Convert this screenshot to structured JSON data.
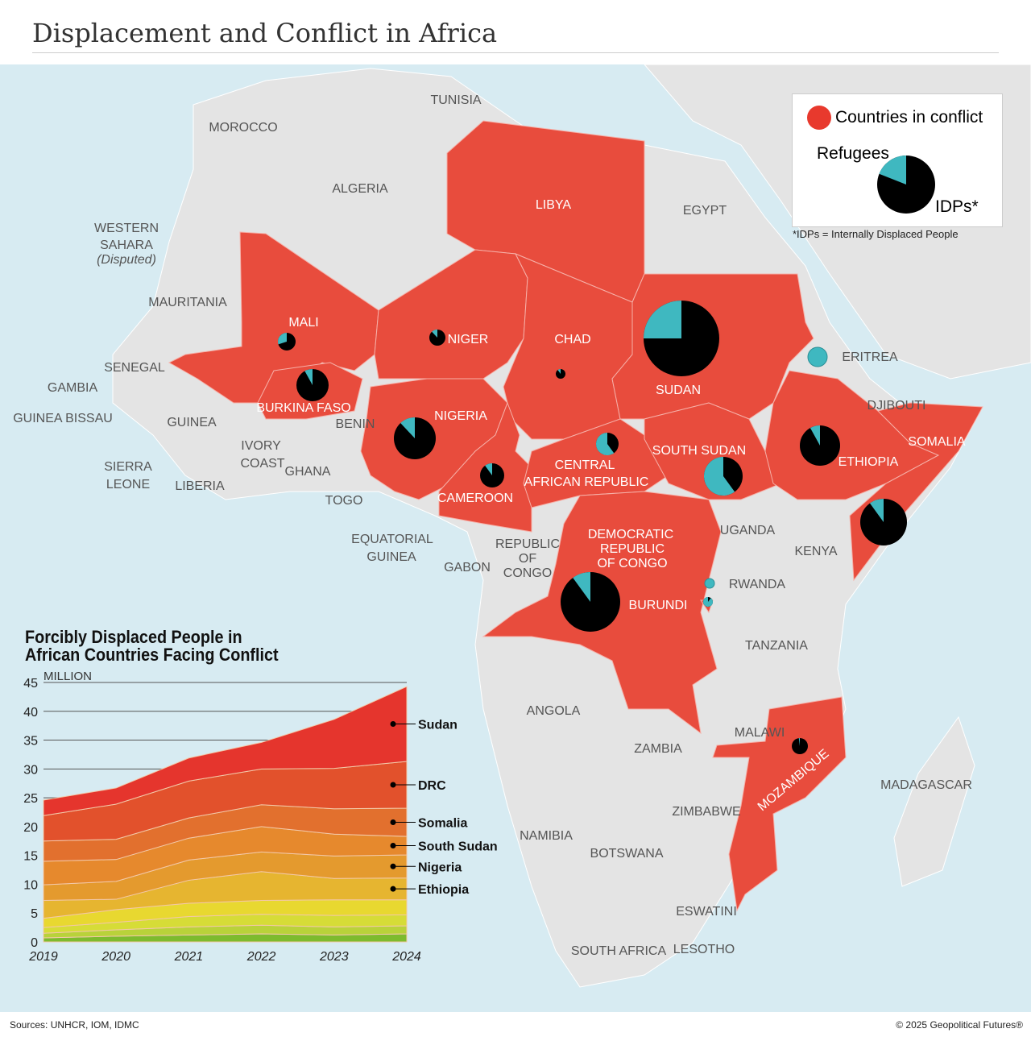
{
  "title": "Displacement and Conflict in Africa",
  "legend": {
    "conflict": "Countries in conflict",
    "refugees": "Refugees",
    "idps": "IDPs*",
    "note": "*IDPs = Internally Displaced People",
    "conflict_color": "#e8392d",
    "refugee_color": "#3fb8c0",
    "idp_color": "#000000"
  },
  "labels": [
    {
      "t": "TUNISIA",
      "c": 0
    },
    {
      "t": "MOROCCO",
      "c": 0
    },
    {
      "t": "ALGERIA",
      "c": 0
    },
    {
      "t": "WESTERN",
      "c": 0
    },
    {
      "t": "SAHARA",
      "c": 0
    },
    {
      "t": "(Disputed)",
      "c": 0
    },
    {
      "t": "LIBYA",
      "c": 1
    },
    {
      "t": "EGYPT",
      "c": 0
    },
    {
      "t": "MAURITANIA",
      "c": 0
    },
    {
      "t": "MALI",
      "c": 1
    },
    {
      "t": "NIGER",
      "c": 1
    },
    {
      "t": "CHAD",
      "c": 1
    },
    {
      "t": "SUDAN",
      "c": 1
    },
    {
      "t": "ERITREA",
      "c": 0
    },
    {
      "t": "SENEGAL",
      "c": 0
    },
    {
      "t": "GAMBIA",
      "c": 0
    },
    {
      "t": "GUINEA BISSAU",
      "c": 0
    },
    {
      "t": "GUINEA",
      "c": 0
    },
    {
      "t": "BURKINA FASO",
      "c": 1
    },
    {
      "t": "BENIN",
      "c": 0
    },
    {
      "t": "NIGERIA",
      "c": 1
    },
    {
      "t": "DJIBOUTI",
      "c": 0
    },
    {
      "t": "SOMALIA",
      "c": 1
    },
    {
      "t": "ETHIOPIA",
      "c": 1
    },
    {
      "t": "SOUTH SUDAN",
      "c": 1
    },
    {
      "t": "CENTRAL",
      "c": 1
    },
    {
      "t": "AFRICAN REPUBLIC",
      "c": 1
    },
    {
      "t": "IVORY",
      "c": 0
    },
    {
      "t": "COAST",
      "c": 0
    },
    {
      "t": "GHANA",
      "c": 0
    },
    {
      "t": "SIERRA",
      "c": 0
    },
    {
      "t": "LEONE",
      "c": 0
    },
    {
      "t": "LIBERIA",
      "c": 0
    },
    {
      "t": "TOGO",
      "c": 0
    },
    {
      "t": "CAMEROON",
      "c": 1
    },
    {
      "t": "EQUATORIAL",
      "c": 0
    },
    {
      "t": "GUINEA",
      "c": 0
    },
    {
      "t": "GABON",
      "c": 0
    },
    {
      "t": "REPUBLIC",
      "c": 0
    },
    {
      "t": "OF",
      "c": 0
    },
    {
      "t": "CONGO",
      "c": 0
    },
    {
      "t": "DEMOCRATIC",
      "c": 1
    },
    {
      "t": "REPUBLIC",
      "c": 1
    },
    {
      "t": "OF CONGO",
      "c": 1
    },
    {
      "t": "UGANDA",
      "c": 0
    },
    {
      "t": "KENYA",
      "c": 0
    },
    {
      "t": "RWANDA",
      "c": 0
    },
    {
      "t": "BURUNDI",
      "c": 1
    },
    {
      "t": "TANZANIA",
      "c": 0
    },
    {
      "t": "ANGOLA",
      "c": 0
    },
    {
      "t": "ZAMBIA",
      "c": 0
    },
    {
      "t": "MALAWI",
      "c": 0
    },
    {
      "t": "MOZAMBIQUE",
      "c": 1
    },
    {
      "t": "MADAGASCAR",
      "c": 0
    },
    {
      "t": "ZIMBABWE",
      "c": 0
    },
    {
      "t": "NAMIBIA",
      "c": 0
    },
    {
      "t": "BOTSWANA",
      "c": 0
    },
    {
      "t": "ESWATINI",
      "c": 0
    },
    {
      "t": "SOUTH AFRICA",
      "c": 0
    },
    {
      "t": "LESOTHO",
      "c": 0
    }
  ],
  "pies": [
    {
      "country": "Mali",
      "size": 11,
      "refugee_share": 0.3
    },
    {
      "country": "Burkina Faso",
      "size": 20,
      "refugee_share": 0.08
    },
    {
      "country": "Niger",
      "size": 10,
      "refugee_share": 0.12
    },
    {
      "country": "Chad",
      "size": 6,
      "refugee_share": 0.1
    },
    {
      "country": "Sudan",
      "size": 47,
      "refugee_share": 0.25
    },
    {
      "country": "Eritrea",
      "size": 12,
      "refugee_share": 1.0
    },
    {
      "country": "Nigeria",
      "size": 26,
      "refugee_share": 0.12
    },
    {
      "country": "Cameroon",
      "size": 15,
      "refugee_share": 0.1
    },
    {
      "country": "Central African Republic",
      "size": 14,
      "refugee_share": 0.6
    },
    {
      "country": "South Sudan",
      "size": 24,
      "refugee_share": 0.6
    },
    {
      "country": "Ethiopia",
      "size": 25,
      "refugee_share": 0.08
    },
    {
      "country": "Somalia",
      "size": 29,
      "refugee_share": 0.1
    },
    {
      "country": "DRC",
      "size": 37,
      "refugee_share": 0.1
    },
    {
      "country": "Rwanda",
      "size": 6,
      "refugee_share": 1.0
    },
    {
      "country": "Burundi",
      "size": 6,
      "refugee_share": 0.9
    },
    {
      "country": "Mozambique",
      "size": 10,
      "refugee_share": 0.02
    }
  ],
  "chart_data": {
    "type": "area",
    "title": "Forcibly Displaced People in African Countries Facing Conflict",
    "ylabel": "MILLION",
    "xlabel": "",
    "x": [
      "2019",
      "2020",
      "2021",
      "2022",
      "2023",
      "2024"
    ],
    "ylim": [
      0,
      45
    ],
    "yticks": [
      "0",
      "5",
      "10",
      "15",
      "20",
      "25",
      "30",
      "35",
      "40",
      "45"
    ],
    "series": [
      {
        "name": "",
        "color": "#7dbb2e",
        "values": [
          0.7,
          1.0,
          1.2,
          1.4,
          1.2,
          1.4
        ]
      },
      {
        "name": "",
        "color": "#b9d23a",
        "values": [
          0.8,
          1.1,
          1.4,
          1.5,
          1.4,
          1.4
        ]
      },
      {
        "name": "",
        "color": "#d6dc37",
        "values": [
          1.0,
          1.3,
          1.8,
          1.9,
          2.0,
          1.9
        ]
      },
      {
        "name": "",
        "color": "#e8d830",
        "values": [
          1.6,
          2.2,
          2.3,
          2.4,
          2.7,
          2.6
        ]
      },
      {
        "name": "Ethiopia",
        "color": "#e6b530",
        "values": [
          3.1,
          1.8,
          4.0,
          5.0,
          3.7,
          3.8
        ]
      },
      {
        "name": "Nigeria",
        "color": "#e49a2e",
        "values": [
          2.7,
          3.1,
          3.5,
          3.4,
          3.9,
          4.0
        ]
      },
      {
        "name": "South Sudan",
        "color": "#e6892d",
        "values": [
          4.1,
          3.8,
          3.8,
          4.4,
          3.8,
          3.2
        ]
      },
      {
        "name": "Somalia",
        "color": "#e2702e",
        "values": [
          3.5,
          3.5,
          3.5,
          3.8,
          4.4,
          4.9
        ]
      },
      {
        "name": "DRC",
        "color": "#e2512c",
        "values": [
          4.4,
          6.1,
          6.4,
          6.2,
          7.0,
          8.1
        ]
      },
      {
        "name": "Sudan",
        "color": "#e5352d",
        "values": [
          2.7,
          2.8,
          4.0,
          4.6,
          8.5,
          13.0
        ]
      }
    ]
  },
  "footer": {
    "sources": "Sources: UNHCR, IOM, IDMC",
    "copyright": "© 2025 Geopolitical Futures®"
  }
}
